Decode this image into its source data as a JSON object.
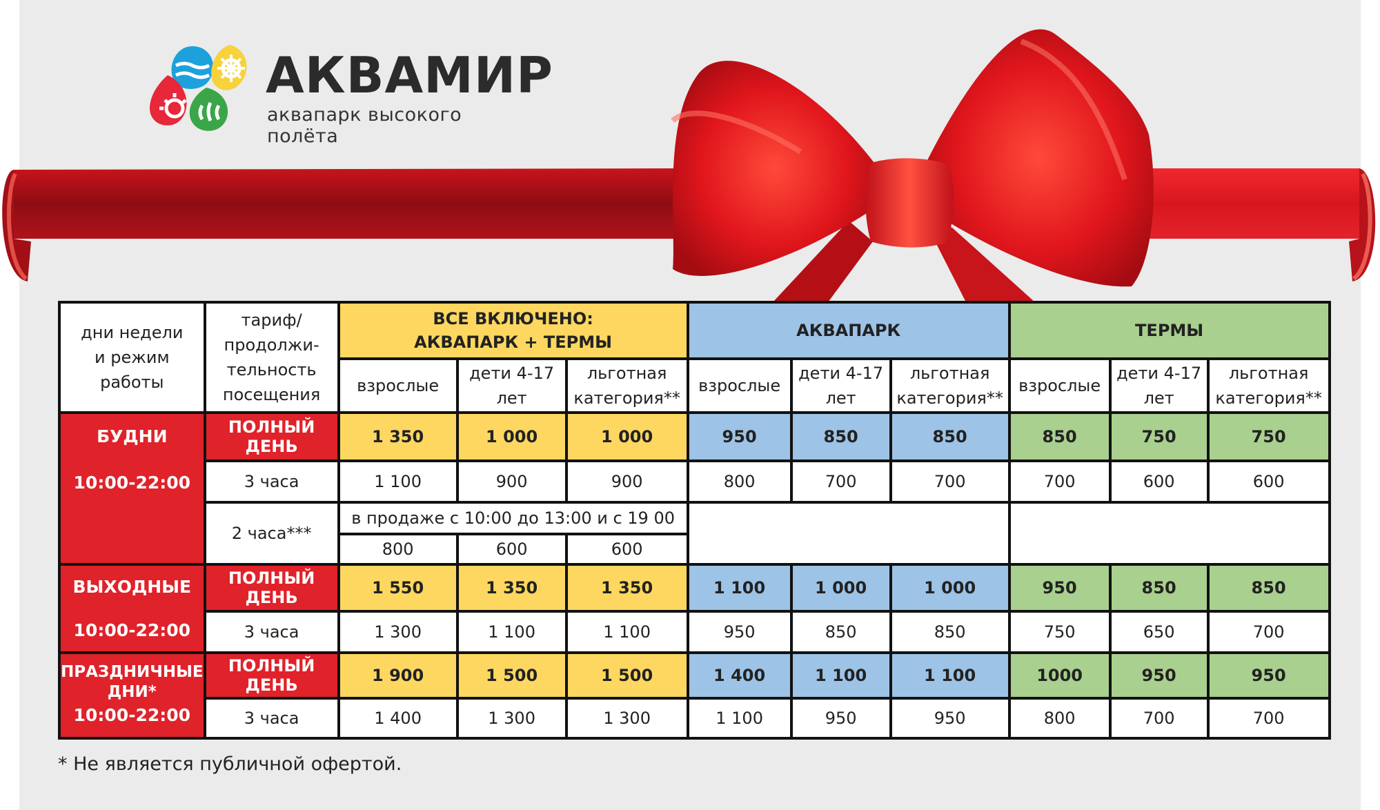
{
  "logo": {
    "title": "АКВАМИР",
    "subtitle": "аквапарк высокого полёта"
  },
  "colors": {
    "red": "#e0222a",
    "yellow": "#fdd760",
    "blue": "#9dc3e6",
    "green": "#a9d08e"
  },
  "table": {
    "header": {
      "days": "дни недели и режим работы",
      "tariff": "тариф/ продолжи-тельность посещения",
      "all_inclusive_line1": "ВСЕ ВКЛЮЧЕНО:",
      "all_inclusive_line2": "АКВАПАРК + ТЕРМЫ",
      "aquapark": "АКВАПАРК",
      "thermal": "ТЕРМЫ",
      "adults": "взрослые",
      "kids": "дети 4-17 лет",
      "reduced": "льготная категория**"
    },
    "weekdays": {
      "name": "БУДНИ",
      "hours": "10:00-22:00",
      "full_day_label": "ПОЛНЫЙ ДЕНЬ",
      "full_day": [
        "1 350",
        "1 000",
        "1 000",
        "950",
        "850",
        "850",
        "850",
        "750",
        "750"
      ],
      "three_hours_label": "3 часа",
      "three_hours": [
        "1 100",
        "900",
        "900",
        "800",
        "700",
        "700",
        "700",
        "600",
        "600"
      ],
      "two_hours_label": "2 часа***",
      "two_hours_note": "в продаже с 10:00 до 13:00 и с 19 00",
      "two_hours": [
        "800",
        "600",
        "600"
      ]
    },
    "weekends": {
      "name": "ВЫХОДНЫЕ",
      "hours": "10:00-22:00",
      "full_day_label": "ПОЛНЫЙ ДЕНЬ",
      "full_day": [
        "1 550",
        "1 350",
        "1 350",
        "1 100",
        "1 000",
        "1 000",
        "950",
        "850",
        "850"
      ],
      "three_hours_label": "3 часа",
      "three_hours": [
        "1 300",
        "1 100",
        "1 100",
        "950",
        "850",
        "850",
        "750",
        "650",
        "700"
      ]
    },
    "holidays": {
      "name": "ПРАЗДНИЧНЫЕ ДНИ*",
      "hours": "10:00-22:00",
      "full_day_label": "ПОЛНЫЙ ДЕНЬ",
      "full_day": [
        "1 900",
        "1 500",
        "1 500",
        "1 400",
        "1 100",
        "1 100",
        "1000",
        "950",
        "950"
      ],
      "three_hours_label": "3 часа",
      "three_hours": [
        "1 400",
        "1 300",
        "1 300",
        "1 100",
        "950",
        "950",
        "800",
        "700",
        "700"
      ]
    }
  },
  "footnote": "*  Не является публичной офертой."
}
